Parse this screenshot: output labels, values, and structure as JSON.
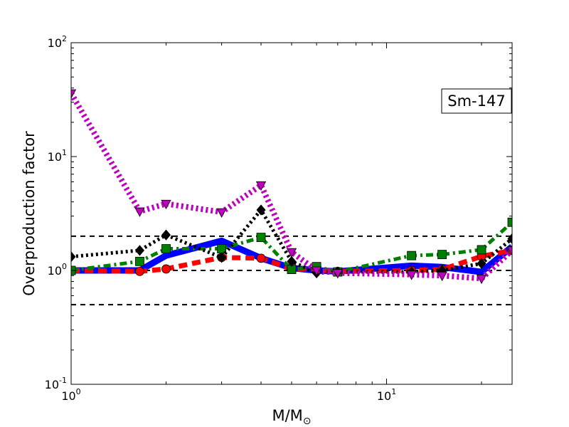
{
  "chart_data": {
    "type": "line",
    "xlabel": "M/M",
    "xlabel_sub": "⊙",
    "ylabel": "Overproduction factor",
    "xscale": "log",
    "yscale": "log",
    "xlim": [
      1,
      25
    ],
    "ylim": [
      0.1,
      100
    ],
    "x_ticks": [
      {
        "value": 1,
        "base": "10",
        "exp": "0"
      },
      {
        "value": 10,
        "base": "10",
        "exp": "1"
      }
    ],
    "y_ticks": [
      {
        "value": 0.1,
        "base": "10",
        "exp": "-1"
      },
      {
        "value": 1,
        "base": "10",
        "exp": "0"
      },
      {
        "value": 10,
        "base": "10",
        "exp": "1"
      },
      {
        "value": 100,
        "base": "10",
        "exp": "2"
      }
    ],
    "annotation": "Sm-147",
    "reference_lines": [
      2.0,
      1.0,
      0.5
    ],
    "grid": false,
    "colors": {
      "blue": "#0000ff",
      "red": "#ff0000",
      "green": "#007f00",
      "black": "#000000",
      "magenta": "#bf00bf"
    },
    "series": [
      {
        "color": "#0000ff",
        "style": "solid",
        "width": 9,
        "marker": "none",
        "x": [
          1.0,
          1.65,
          2.0,
          3.0,
          4.0,
          5.0,
          6.0,
          7.0,
          12.0,
          15.0,
          20.0,
          25.0
        ],
        "y": [
          1.0,
          1.0,
          1.35,
          1.82,
          1.28,
          1.05,
          1.0,
          0.98,
          1.1,
          1.07,
          0.97,
          1.62
        ]
      },
      {
        "color": "#ff0000",
        "style": "dashed",
        "width": 7,
        "marker": "circle",
        "x": [
          1.0,
          1.65,
          2.0,
          3.0,
          4.0,
          5.0,
          6.0,
          7.0,
          12.0,
          15.0,
          20.0,
          25.0
        ],
        "y": [
          1.0,
          0.98,
          1.03,
          1.3,
          1.28,
          1.03,
          1.02,
          0.98,
          1.0,
          1.02,
          1.33,
          1.5
        ]
      },
      {
        "color": "#007f00",
        "style": "dashdot",
        "width": 5,
        "marker": "square",
        "x": [
          1.0,
          1.65,
          2.0,
          3.0,
          4.0,
          5.0,
          6.0,
          7.0,
          12.0,
          15.0,
          20.0,
          25.0
        ],
        "y": [
          1.0,
          1.2,
          1.55,
          1.55,
          1.95,
          1.02,
          1.08,
          0.97,
          1.35,
          1.38,
          1.52,
          2.65
        ]
      },
      {
        "color": "#000000",
        "style": "dotted",
        "width": 5,
        "marker": "diamond",
        "x": [
          1.0,
          1.65,
          2.0,
          3.0,
          4.0,
          5.0,
          6.0,
          7.0,
          12.0,
          15.0,
          20.0,
          25.0
        ],
        "y": [
          1.32,
          1.5,
          2.05,
          1.3,
          3.4,
          1.2,
          0.95,
          0.97,
          0.97,
          1.0,
          1.15,
          1.9
        ]
      },
      {
        "color": "#bf00bf",
        "style": "dotted",
        "width": 8,
        "marker": "triangle-down",
        "x": [
          1.0,
          1.65,
          2.0,
          3.0,
          4.0,
          5.0,
          6.0,
          7.0,
          12.0,
          15.0,
          20.0,
          25.0
        ],
        "y": [
          36.0,
          3.3,
          3.85,
          3.25,
          5.6,
          1.45,
          1.0,
          0.95,
          0.92,
          0.9,
          0.85,
          1.5
        ]
      }
    ]
  }
}
